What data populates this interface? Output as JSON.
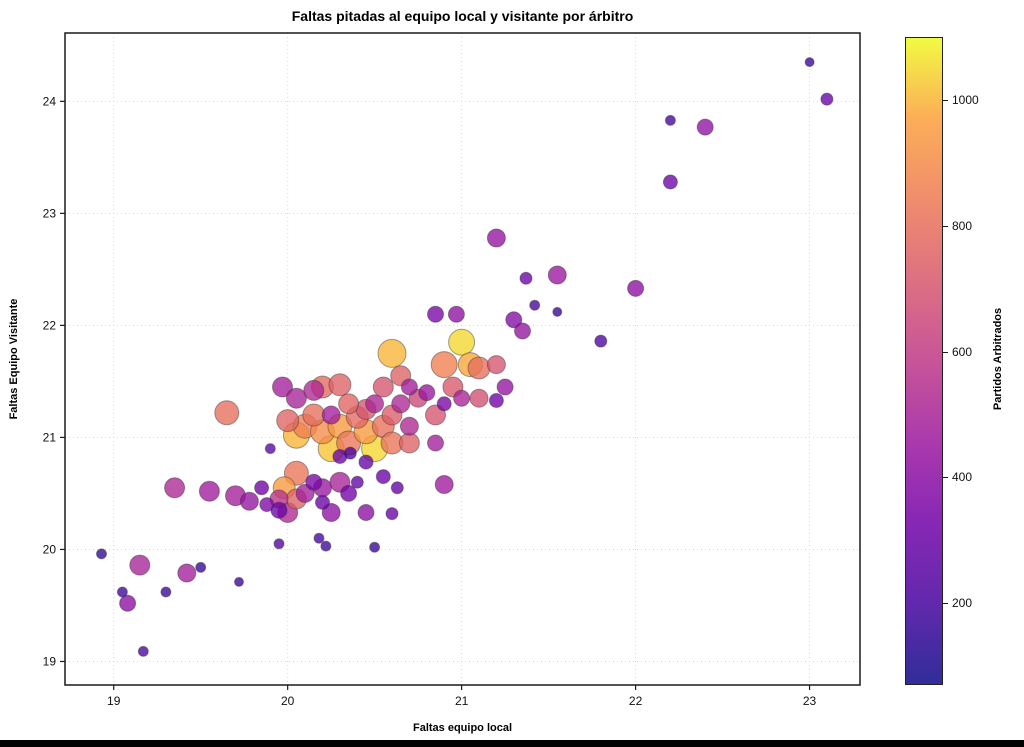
{
  "chart_data": {
    "type": "scatter",
    "title": "Faltas pitadas al equipo local y visitante por árbitro",
    "xlabel": "Faltas equipo local",
    "ylabel": "Faltas Equipo Visitante",
    "colorbar_label": "Partidos Arbitrados",
    "xlim": [
      18.72,
      23.29
    ],
    "ylim": [
      18.79,
      24.61
    ],
    "xticks": [
      19,
      20,
      21,
      22,
      23
    ],
    "yticks": [
      19,
      20,
      21,
      22,
      23,
      24
    ],
    "grid": true,
    "legend": "colorbar-right",
    "colormap": "plasma",
    "colormap_stops": [
      [
        0.0,
        "#0d0887"
      ],
      [
        0.125,
        "#46039f"
      ],
      [
        0.25,
        "#7201a8"
      ],
      [
        0.375,
        "#9c179e"
      ],
      [
        0.5,
        "#bd3786"
      ],
      [
        0.625,
        "#d8576b"
      ],
      [
        0.75,
        "#ed7953"
      ],
      [
        0.875,
        "#fb9f3a"
      ],
      [
        1.0,
        "#f0f921"
      ]
    ],
    "color_domain": [
      70,
      1100
    ],
    "colorbar_ticks": [
      200,
      400,
      600,
      800,
      1000
    ],
    "point_alpha": 0.78,
    "points_columns": [
      "faltas_local_x",
      "faltas_visitante_y",
      "partidos_arbitrados",
      "radius_px"
    ],
    "points": [
      [
        18.93,
        19.96,
        150,
        5
      ],
      [
        19.05,
        19.62,
        180,
        5
      ],
      [
        19.08,
        19.52,
        400,
        8
      ],
      [
        19.17,
        19.09,
        220,
        5
      ],
      [
        19.15,
        19.86,
        500,
        10
      ],
      [
        19.3,
        19.62,
        170,
        5
      ],
      [
        19.42,
        19.79,
        480,
        9
      ],
      [
        19.5,
        19.84,
        160,
        5
      ],
      [
        19.72,
        19.71,
        170,
        4.5
      ],
      [
        19.35,
        20.55,
        520,
        10
      ],
      [
        19.55,
        20.52,
        470,
        10
      ],
      [
        19.65,
        21.22,
        800,
        12
      ],
      [
        19.7,
        20.48,
        480,
        10
      ],
      [
        19.78,
        20.43,
        430,
        9
      ],
      [
        19.85,
        20.55,
        320,
        7
      ],
      [
        19.88,
        20.4,
        360,
        7
      ],
      [
        19.95,
        20.45,
        560,
        9
      ],
      [
        19.9,
        20.9,
        260,
        5
      ],
      [
        19.95,
        20.05,
        230,
        5
      ],
      [
        19.95,
        20.35,
        310,
        8
      ],
      [
        20.0,
        20.33,
        520,
        10
      ],
      [
        19.97,
        21.45,
        480,
        10
      ],
      [
        20.05,
        21.35,
        500,
        10
      ],
      [
        20.0,
        21.15,
        760,
        11
      ],
      [
        19.98,
        20.55,
        950,
        11
      ],
      [
        20.05,
        20.45,
        750,
        10
      ],
      [
        20.05,
        20.68,
        820,
        12
      ],
      [
        20.05,
        21.02,
        1000,
        13
      ],
      [
        20.1,
        21.1,
        860,
        12
      ],
      [
        20.15,
        21.42,
        520,
        10
      ],
      [
        20.2,
        21.45,
        780,
        11
      ],
      [
        20.3,
        21.47,
        750,
        11
      ],
      [
        20.15,
        21.2,
        800,
        11
      ],
      [
        20.25,
        21.2,
        480,
        9
      ],
      [
        20.2,
        21.05,
        900,
        12
      ],
      [
        20.3,
        21.1,
        950,
        12
      ],
      [
        20.25,
        20.9,
        1020,
        13
      ],
      [
        20.35,
        20.95,
        830,
        12
      ],
      [
        20.4,
        21.18,
        780,
        11
      ],
      [
        20.45,
        21.25,
        700,
        10
      ],
      [
        20.5,
        21.3,
        510,
        9
      ],
      [
        20.45,
        21.05,
        950,
        12
      ],
      [
        20.55,
        21.1,
        810,
        11
      ],
      [
        20.5,
        20.9,
        1050,
        13
      ],
      [
        20.6,
        20.95,
        820,
        11
      ],
      [
        20.6,
        21.2,
        730,
        10
      ],
      [
        20.65,
        21.3,
        520,
        9
      ],
      [
        20.55,
        21.45,
        700,
        10
      ],
      [
        20.6,
        21.75,
        1000,
        14
      ],
      [
        20.65,
        21.55,
        750,
        10
      ],
      [
        20.35,
        21.3,
        760,
        10
      ],
      [
        20.7,
        21.45,
        480,
        8
      ],
      [
        20.7,
        21.1,
        520,
        9
      ],
      [
        20.75,
        21.35,
        650,
        9
      ],
      [
        20.8,
        21.4,
        450,
        8
      ],
      [
        20.85,
        21.2,
        700,
        10
      ],
      [
        20.85,
        20.95,
        480,
        8
      ],
      [
        20.7,
        20.95,
        750,
        10
      ],
      [
        20.1,
        20.5,
        480,
        9
      ],
      [
        20.15,
        20.6,
        350,
        8
      ],
      [
        20.2,
        20.55,
        450,
        9
      ],
      [
        20.3,
        20.6,
        500,
        10
      ],
      [
        20.2,
        20.42,
        300,
        7
      ],
      [
        20.25,
        20.33,
        420,
        9
      ],
      [
        20.35,
        20.5,
        330,
        8
      ],
      [
        20.4,
        20.6,
        280,
        6
      ],
      [
        20.3,
        20.83,
        300,
        7
      ],
      [
        20.36,
        20.86,
        210,
        6
      ],
      [
        20.45,
        20.78,
        290,
        7
      ],
      [
        20.45,
        20.33,
        400,
        8
      ],
      [
        20.6,
        20.32,
        300,
        6
      ],
      [
        20.55,
        20.65,
        300,
        7
      ],
      [
        20.63,
        20.55,
        280,
        6
      ],
      [
        20.18,
        20.1,
        200,
        5
      ],
      [
        20.22,
        20.03,
        180,
        5
      ],
      [
        20.5,
        20.02,
        160,
        5
      ],
      [
        20.9,
        20.58,
        460,
        9
      ],
      [
        20.9,
        21.65,
        860,
        13
      ],
      [
        21.0,
        21.85,
        1050,
        13
      ],
      [
        21.05,
        21.65,
        980,
        12
      ],
      [
        21.1,
        21.62,
        800,
        11
      ],
      [
        20.95,
        21.45,
        720,
        10
      ],
      [
        21.0,
        21.35,
        500,
        8
      ],
      [
        21.1,
        21.35,
        680,
        9
      ],
      [
        21.2,
        21.65,
        700,
        9
      ],
      [
        21.25,
        21.45,
        430,
        8
      ],
      [
        21.2,
        21.33,
        320,
        7
      ],
      [
        20.9,
        21.3,
        350,
        7
      ],
      [
        20.85,
        22.1,
        350,
        8
      ],
      [
        20.97,
        22.1,
        410,
        8
      ],
      [
        21.3,
        22.05,
        380,
        8
      ],
      [
        21.35,
        21.95,
        430,
        8
      ],
      [
        21.37,
        22.42,
        300,
        6
      ],
      [
        21.42,
        22.18,
        200,
        5
      ],
      [
        21.55,
        22.12,
        160,
        4.5
      ],
      [
        21.8,
        21.86,
        220,
        6
      ],
      [
        21.55,
        22.45,
        450,
        9
      ],
      [
        22.0,
        22.33,
        400,
        8
      ],
      [
        21.2,
        22.78,
        430,
        9
      ],
      [
        22.2,
        23.28,
        310,
        7
      ],
      [
        22.2,
        23.83,
        190,
        5
      ],
      [
        22.4,
        23.77,
        420,
        8
      ],
      [
        23.0,
        24.35,
        170,
        4.5
      ],
      [
        23.1,
        24.02,
        290,
        6
      ]
    ]
  }
}
